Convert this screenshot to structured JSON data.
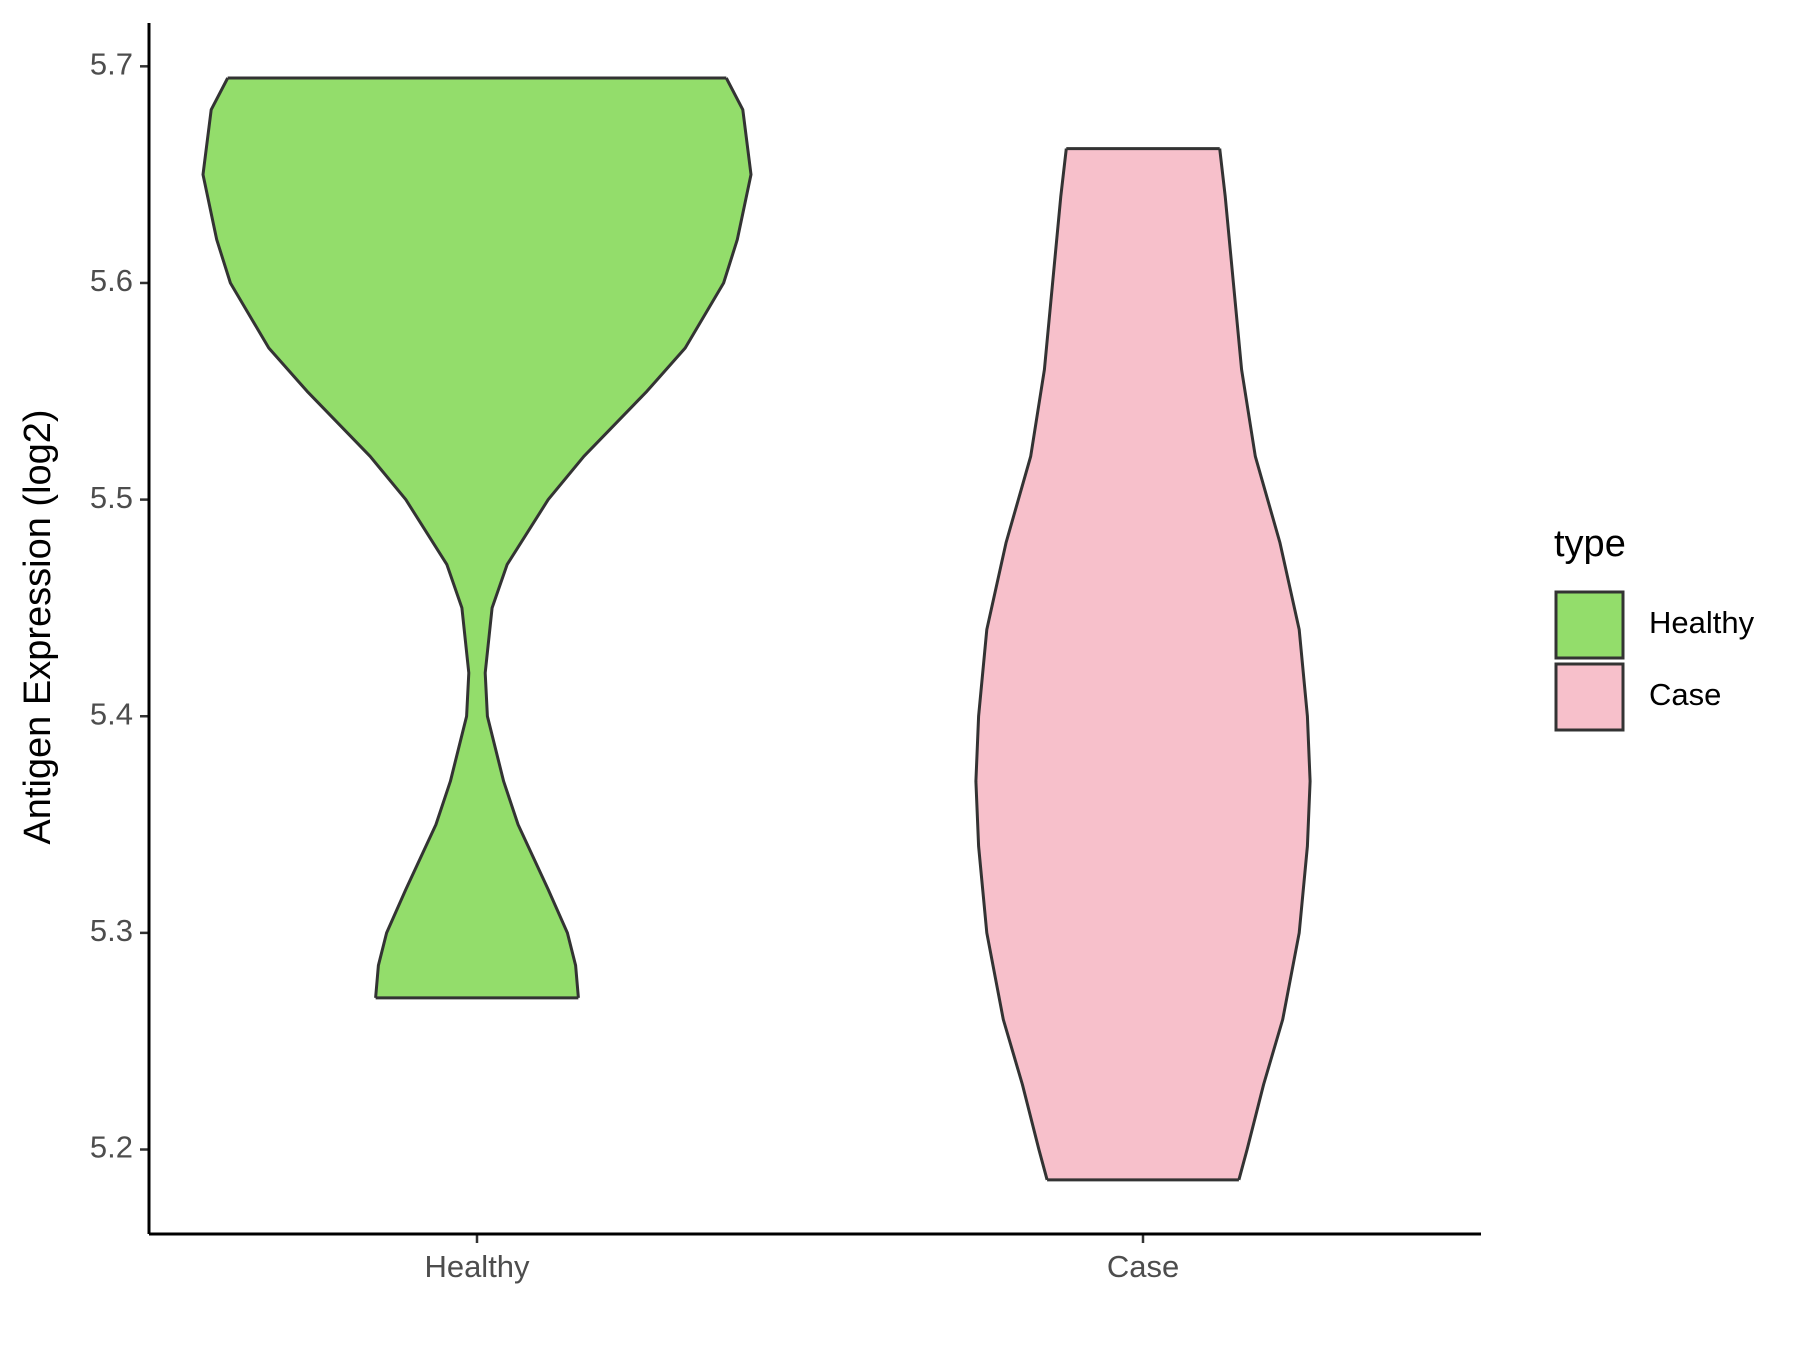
{
  "chart_data": {
    "type": "violin",
    "y_label": "Antigen Expression (log2)",
    "legend_title": "type",
    "ylim": [
      5.161,
      5.72
    ],
    "yticks": [
      5.2,
      5.3,
      5.4,
      5.5,
      5.6,
      5.7
    ],
    "categories": [
      "Healthy",
      "Case"
    ],
    "series": [
      {
        "name": "Healthy",
        "color": "#93dd6b",
        "y": [
          5.6946,
          5.68,
          5.65,
          5.62,
          5.6,
          5.57,
          5.55,
          5.52,
          5.5,
          5.47,
          5.45,
          5.42,
          5.4,
          5.37,
          5.35,
          5.32,
          5.3,
          5.285,
          5.27
        ],
        "density": [
          0.91,
          0.97,
          1.0,
          0.95,
          0.9,
          0.76,
          0.62,
          0.39,
          0.26,
          0.11,
          0.055,
          0.03,
          0.038,
          0.097,
          0.15,
          0.26,
          0.33,
          0.36,
          0.37
        ]
      },
      {
        "name": "Case",
        "color": "#f7c0cb",
        "y": [
          5.662,
          5.64,
          5.6,
          5.56,
          5.52,
          5.48,
          5.44,
          5.4,
          5.37,
          5.34,
          5.3,
          5.26,
          5.23,
          5.2,
          5.186
        ],
        "density": [
          0.28,
          0.3,
          0.33,
          0.36,
          0.41,
          0.5,
          0.57,
          0.6,
          0.61,
          0.6,
          0.57,
          0.51,
          0.44,
          0.38,
          0.35
        ]
      }
    ]
  }
}
